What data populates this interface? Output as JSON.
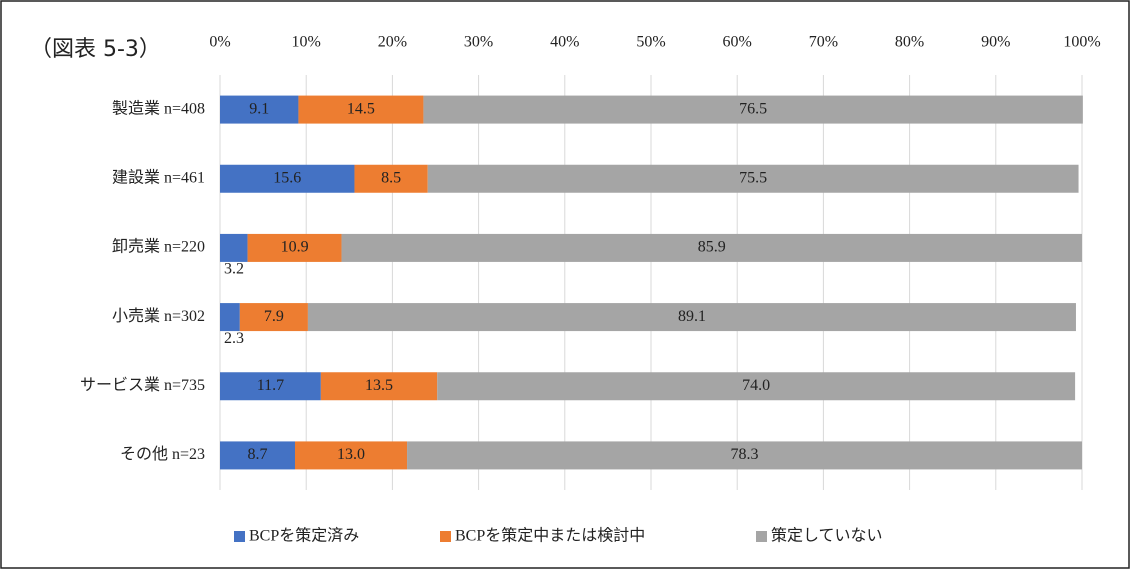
{
  "chart_data": {
    "type": "stacked-barh",
    "title": "（図表 5-3）",
    "categories": [
      "製造業 n=408",
      "建設業 n=461",
      "卸売業 n=220",
      "小売業 n=302",
      "サービス業 n=735",
      "その他 n=23"
    ],
    "series": [
      {
        "name": "BCPを策定済み",
        "color": "#4472c4",
        "values": [
          9.1,
          15.6,
          3.2,
          2.3,
          11.7,
          8.7
        ],
        "value_labels": [
          "9.1",
          "15.6",
          "3.2",
          "2.3",
          "11.7",
          "8.7"
        ]
      },
      {
        "name": "BCPを策定中または検討中",
        "color": "#ed7d31",
        "values": [
          14.5,
          8.5,
          10.9,
          7.9,
          13.5,
          13.0
        ],
        "value_labels": [
          "14.5",
          "8.5",
          "10.9",
          "7.9",
          "13.5",
          "13.0"
        ]
      },
      {
        "name": "策定していない",
        "color": "#a5a5a5",
        "values": [
          76.5,
          75.5,
          85.9,
          89.1,
          74.0,
          78.3
        ],
        "value_labels": [
          "76.5",
          "75.5",
          "85.9",
          "89.1",
          "74.0",
          "78.3"
        ]
      }
    ],
    "xlim": [
      0,
      100
    ],
    "xticks": [
      {
        "value": 0,
        "label": "0%"
      },
      {
        "value": 10,
        "label": "10%"
      },
      {
        "value": 20,
        "label": "20%"
      },
      {
        "value": 30,
        "label": "30%"
      },
      {
        "value": 40,
        "label": "40%"
      },
      {
        "value": 50,
        "label": "50%"
      },
      {
        "value": 60,
        "label": "60%"
      },
      {
        "value": 70,
        "label": "70%"
      },
      {
        "value": 80,
        "label": "80%"
      },
      {
        "value": 90,
        "label": "90%"
      },
      {
        "value": 100,
        "label": "100%"
      }
    ],
    "grid": true,
    "legend": "bottom"
  }
}
